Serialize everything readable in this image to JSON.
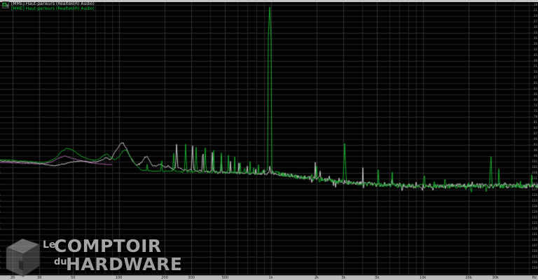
{
  "legend": {
    "series": [
      {
        "label": "[MME] Haut-parleurs (Realtek(R) Audio)",
        "color": "#dadada"
      },
      {
        "label": "[MME] Haut-parleurs (Realtek(R) Audio)",
        "color": "#00c832"
      }
    ]
  },
  "watermark": {
    "le": "Le",
    "comptoir": "COMPTOIR",
    "du": "du",
    "hardware": "HARDWARE"
  },
  "chart_data": {
    "type": "line",
    "title": "",
    "x_axis": {
      "scale": "log",
      "unit": "Hz",
      "min_hz": 17,
      "max_hz": 57000,
      "ticks": [
        {
          "f": 20,
          "label": "20"
        },
        {
          "f": 30,
          "label": "30"
        },
        {
          "f": 50,
          "label": "50"
        },
        {
          "f": 100,
          "label": "100"
        },
        {
          "f": 200,
          "label": "200"
        },
        {
          "f": 300,
          "label": "300"
        },
        {
          "f": 500,
          "label": "500"
        },
        {
          "f": 1000,
          "label": "1k"
        },
        {
          "f": 2000,
          "label": "2k"
        },
        {
          "f": 3000,
          "label": "3k"
        },
        {
          "f": 5000,
          "label": "5k"
        },
        {
          "f": 10000,
          "label": "10k"
        },
        {
          "f": 20000,
          "label": "20k"
        },
        {
          "f": 30000,
          "label": "30k"
        }
      ]
    },
    "y_axis": {
      "tick_start": 18,
      "tick_end": 162,
      "tick_step": 3,
      "labels_on_right": true,
      "labels_on_left": true
    },
    "grid": {
      "h_color": "#232323",
      "h_major_color": "#2e2e2e",
      "v_color": "#222222",
      "v_major_color": "#2f2f2f"
    },
    "series": [
      {
        "name": "peak-hold-magenta",
        "color": "#a863a8",
        "anchors": [
          [
            16.6,
            102.4
          ],
          [
            20,
            102.6
          ],
          [
            24,
            102.9
          ],
          [
            28,
            103.0
          ],
          [
            32,
            103.1
          ],
          [
            36,
            102.2
          ],
          [
            40,
            100.1
          ],
          [
            44,
            98.9
          ],
          [
            48,
            99.8
          ],
          [
            53,
            100.9
          ],
          [
            58,
            101.8
          ],
          [
            65,
            102.6
          ],
          [
            75,
            103.2
          ],
          [
            90,
            103.6
          ]
        ],
        "spikes": [],
        "noise": [
          {
            "f0": 16,
            "f1": 95,
            "amp": 0.15
          }
        ]
      },
      {
        "name": "channel-1-white",
        "color": "#c9c9c9",
        "anchors": [
          [
            16.6,
            101.6
          ],
          [
            19.4,
            101.8
          ],
          [
            22.7,
            102.2
          ],
          [
            26.6,
            102.6
          ],
          [
            31.2,
            103.1
          ],
          [
            37.4,
            104.2
          ],
          [
            41.7,
            103.4
          ],
          [
            47.7,
            102.4
          ],
          [
            53,
            101.8
          ],
          [
            57.8,
            101.6
          ],
          [
            64.3,
            102.3
          ],
          [
            71.5,
            102.0
          ],
          [
            77,
            101.2
          ],
          [
            82.9,
            99.8
          ],
          [
            88.4,
            100.9
          ],
          [
            95,
            96.4
          ],
          [
            102.5,
            92.3
          ],
          [
            105.8,
            91.9
          ],
          [
            111.6,
            94.5
          ],
          [
            117.7,
            99.0
          ],
          [
            124,
            102.0
          ],
          [
            131,
            103.9
          ],
          [
            140.9,
            102.4
          ],
          [
            148.2,
            99.6
          ],
          [
            153.4,
            99.2
          ],
          [
            161.7,
            102.4
          ],
          [
            167,
            104.2
          ],
          [
            178,
            104.3
          ],
          [
            185.7,
            103.1
          ],
          [
            196,
            104.2
          ],
          [
            204,
            105.0
          ],
          [
            210.9,
            104.2
          ],
          [
            220,
            105.2
          ],
          [
            229.6,
            105.6
          ],
          [
            239.7,
            105.2
          ],
          [
            250,
            105.6
          ],
          [
            266,
            106.3
          ],
          [
            284,
            106.7
          ],
          [
            306,
            106.2
          ],
          [
            322,
            107.1
          ],
          [
            347,
            106.8
          ],
          [
            370,
            107.4
          ],
          [
            390,
            107.2
          ],
          [
            411,
            107.6
          ],
          [
            430,
            107.3
          ],
          [
            450,
            107.7
          ],
          [
            473,
            107.5
          ],
          [
            493,
            107.8
          ],
          [
            520,
            107.9
          ],
          [
            542,
            107.6
          ],
          [
            566,
            108.0
          ],
          [
            590,
            107.8
          ],
          [
            616,
            108.2
          ],
          [
            643,
            108.0
          ],
          [
            670,
            108.3
          ],
          [
            700,
            108.1
          ],
          [
            730,
            108.4
          ],
          [
            761,
            108.2
          ],
          [
            794,
            108.5
          ],
          [
            830,
            108.3
          ],
          [
            865,
            108.6
          ],
          [
            902,
            108.4
          ],
          [
            941,
            108.6
          ],
          [
            982,
            106.9
          ],
          [
            1040,
            108.3
          ],
          [
            1092,
            108.7
          ],
          [
            1152,
            108.6
          ],
          [
            1280,
            109.1
          ],
          [
            1500,
            109.9
          ],
          [
            1760,
            110.8
          ],
          [
            2000,
            111.0
          ],
          [
            2180,
            111.5
          ],
          [
            2420,
            111.9
          ],
          [
            2700,
            112.5
          ],
          [
            3000,
            112.8
          ],
          [
            3330,
            113.2
          ],
          [
            3700,
            113.5
          ],
          [
            4030,
            113.7
          ],
          [
            4580,
            114.0
          ],
          [
            5100,
            114.3
          ],
          [
            5660,
            114.5
          ],
          [
            6300,
            114.7
          ],
          [
            7400,
            114.8
          ],
          [
            8650,
            115.0
          ],
          [
            10150,
            114.9
          ],
          [
            12000,
            115.0
          ],
          [
            14700,
            114.9
          ],
          [
            18200,
            115.0
          ],
          [
            22500,
            114.9
          ],
          [
            27800,
            115.0
          ],
          [
            31000,
            114.9
          ],
          [
            34400,
            115.0
          ],
          [
            42500,
            114.9
          ],
          [
            52500,
            115.0
          ],
          [
            57000,
            114.9
          ]
        ],
        "spikes": [
          [
            159,
            99.4
          ],
          [
            240,
            90.8
          ],
          [
            305,
            91.9
          ],
          [
            357,
            94.1
          ],
          [
            412,
            96.4
          ],
          [
            472,
            98.6
          ],
          [
            542,
            100.9
          ],
          [
            616,
            102.4
          ],
          [
            700,
            103.9
          ],
          [
            795,
            105.4
          ],
          [
            902,
            106.1
          ],
          [
            982,
            104.3
          ],
          [
            1960,
            102.0
          ],
          [
            2100,
            104.3
          ],
          [
            2430,
            105.4
          ],
          [
            4030,
            104.6
          ],
          [
            6300,
            109.1
          ],
          [
            9000,
            109.9
          ],
          [
            14000,
            110.6
          ],
          [
            21000,
            110.2
          ],
          [
            34600,
            109.1
          ]
        ],
        "noise": [
          {
            "f0": 16,
            "f1": 200,
            "amp": 0.25
          },
          {
            "f0": 200,
            "f1": 1000,
            "amp": 0.5
          },
          {
            "f0": 1000,
            "f1": 2500,
            "amp": 1.1
          },
          {
            "f0": 2500,
            "f1": 60000,
            "amp": 1.3
          }
        ]
      },
      {
        "name": "channel-2-green",
        "color": "#17a82a",
        "anchors": [
          [
            16.6,
            100.9
          ],
          [
            19.4,
            101.2
          ],
          [
            22.7,
            101.6
          ],
          [
            26.6,
            102.0
          ],
          [
            31.2,
            102.4
          ],
          [
            34.7,
            102.0
          ],
          [
            38.6,
            99.8
          ],
          [
            41.6,
            96.8
          ],
          [
            45.3,
            94.9
          ],
          [
            49.3,
            95.6
          ],
          [
            53.1,
            97.5
          ],
          [
            57.8,
            99.4
          ],
          [
            64.3,
            100.9
          ],
          [
            71,
            101.2
          ],
          [
            75,
            100.3
          ],
          [
            79.4,
            98.6
          ],
          [
            83.7,
            97.9
          ],
          [
            88.4,
            99.8
          ],
          [
            94.2,
            100.9
          ],
          [
            100.4,
            99.4
          ],
          [
            105.8,
            96.4
          ],
          [
            111.6,
            95.6
          ],
          [
            117.7,
            98.6
          ],
          [
            124.1,
            101.6
          ],
          [
            132.2,
            104.6
          ],
          [
            140.9,
            106.5
          ],
          [
            153.4,
            106.9
          ],
          [
            167,
            107.0
          ],
          [
            178,
            107.1
          ],
          [
            191.7,
            107.2
          ],
          [
            210,
            107.3
          ],
          [
            230,
            107.3
          ],
          [
            250,
            107.4
          ],
          [
            283,
            107.4
          ],
          [
            322,
            107.5
          ],
          [
            370,
            107.5
          ],
          [
            430,
            107.6
          ],
          [
            493,
            107.7
          ],
          [
            565,
            107.8
          ],
          [
            640,
            107.9
          ],
          [
            700,
            108.0
          ],
          [
            760,
            108.1
          ],
          [
            830,
            108.2
          ],
          [
            900,
            107.8
          ],
          [
            950,
            106.5
          ],
          [
            975,
            105.4
          ],
          [
            990,
            105.4
          ],
          [
            1015,
            106.5
          ],
          [
            1060,
            107.9
          ],
          [
            1150,
            108.6
          ],
          [
            1280,
            109.2
          ],
          [
            1500,
            110.2
          ],
          [
            1760,
            110.9
          ],
          [
            2000,
            111.3
          ],
          [
            2400,
            112.1
          ],
          [
            3000,
            112.9
          ],
          [
            3700,
            113.6
          ],
          [
            4600,
            114.2
          ],
          [
            5700,
            114.6
          ],
          [
            7400,
            115.0
          ],
          [
            10000,
            115.1
          ],
          [
            15000,
            115.2
          ],
          [
            20000,
            115.1
          ],
          [
            28000,
            115.2
          ],
          [
            35000,
            115.1
          ],
          [
            45000,
            115.2
          ],
          [
            57000,
            115.1
          ]
        ],
        "spikes": [
          [
            154,
            100.1
          ],
          [
            191,
            98.6
          ],
          [
            229,
            94.9
          ],
          [
            275,
            92.6
          ],
          [
            322,
            93.4
          ],
          [
            370,
            94.5
          ],
          [
            420,
            95.6
          ],
          [
            472,
            96.8
          ],
          [
            525,
            97.9
          ],
          [
            578,
            99.0
          ],
          [
            627,
            100.1
          ],
          [
            674,
            101.3
          ],
          [
            730,
            102.0
          ],
          [
            771,
            102.8
          ],
          [
            829,
            103.5
          ],
          [
            870,
            104.3
          ],
          [
            982,
            18.4
          ],
          [
            1150,
            106.5
          ],
          [
            2000,
            105.4
          ],
          [
            3060,
            92.6
          ],
          [
            5090,
            105.8
          ],
          [
            6300,
            107.0
          ],
          [
            10200,
            106.5
          ],
          [
            14000,
            107.5
          ],
          [
            28000,
            97.5
          ],
          [
            31600,
            104.6
          ],
          [
            52000,
            109.5
          ]
        ],
        "noise": [
          {
            "f0": 16,
            "f1": 200,
            "amp": 0.2
          },
          {
            "f0": 200,
            "f1": 1000,
            "amp": 0.5
          },
          {
            "f0": 1000,
            "f1": 60000,
            "amp": 1.15
          }
        ]
      }
    ]
  }
}
